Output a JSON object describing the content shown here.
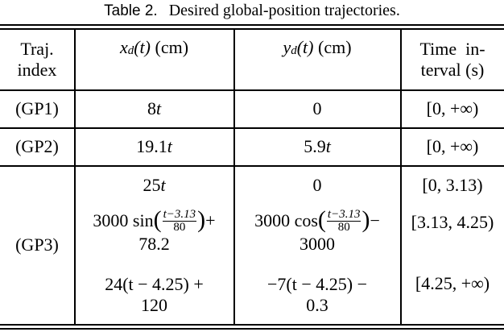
{
  "caption": {
    "label": "Table 2.",
    "text": "Desired global-position trajectories."
  },
  "header": {
    "traj_line1": "Traj.",
    "traj_line2": "index",
    "x_var": "x",
    "x_sub": "d",
    "x_arg": "(t)",
    "x_unit": "(cm)",
    "y_var": "y",
    "y_sub": "d",
    "y_arg": "(t)",
    "y_unit": "(cm)",
    "time_line1": "Time  in-",
    "time_line2": "terval (s)"
  },
  "rows": {
    "gp1": {
      "index": "(GP1)",
      "x_num": "8",
      "x_var": "t",
      "y": "0",
      "interval": "[0, +∞)"
    },
    "gp2": {
      "index": "(GP2)",
      "x_num": "19.1",
      "x_var": "t",
      "y_num": "5.9",
      "y_var": "t",
      "interval": "[0, +∞)"
    },
    "gp3": {
      "index": "(GP3)",
      "s1": {
        "x_num": "25",
        "x_var": "t",
        "y": "0",
        "interval": "[0, 3.13)"
      },
      "s2": {
        "x_pre": "3000 sin",
        "x_frac_num": "t−3.13",
        "x_frac_den": "80",
        "x_post": "+",
        "x_line2": "78.2",
        "y_pre": "3000 cos",
        "y_frac_num": "t−3.13",
        "y_frac_den": "80",
        "y_post": "−",
        "y_line2": "3000",
        "interval": "[3.13, 4.25)"
      },
      "s3": {
        "x_line1": "24(t − 4.25) +",
        "x_line2": "120",
        "y_line1": "−7(t − 4.25) −",
        "y_line2": "0.3",
        "interval": "[4.25, +∞)"
      }
    }
  }
}
